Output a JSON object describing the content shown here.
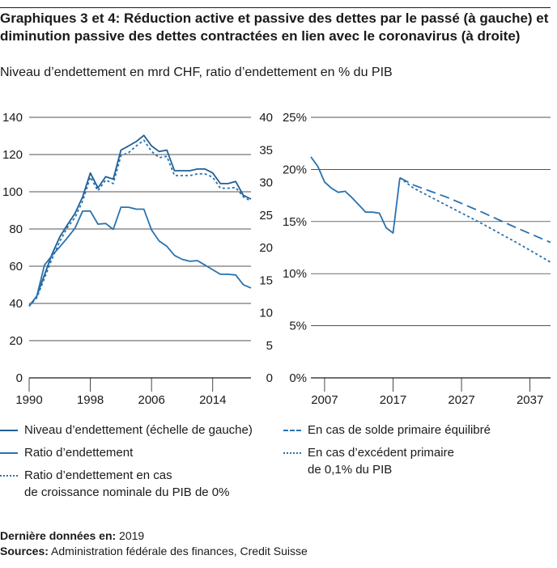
{
  "title": "Graphiques 3 et 4: Réduction active et passive des dettes par le passé (à gauche) et diminution passive des dettes contractées en lien avec le coronavirus (à droite)",
  "subtitle": "Niveau d’endettement en mrd CHF, ratio d’endettement en % du PIB",
  "legend": {
    "item1": "Niveau d’endettement (échelle de gauche)",
    "item2": "Ratio d’endettement",
    "item3_line1": "Ratio d’endettement en cas",
    "item3_line2": "de croissance nominale du PIB de 0%",
    "item4": "En cas de solde primaire équilibré",
    "item5_line1": "En cas d’excédent primaire",
    "item5_line2": "de 0,1% du PIB"
  },
  "footer": {
    "last_data_label": "Dernière données en:",
    "last_data_value": "2019",
    "sources_label": "Sources:",
    "sources_value": "Administration fédérale des finances, Credit Suisse"
  },
  "colors": {
    "line": "#2872b0",
    "line_dark": "#1e5f96",
    "grid": "#1a1a1a"
  },
  "chart_data": [
    {
      "type": "line",
      "left_axis_ticks": [
        "0",
        "20",
        "40",
        "60",
        "80",
        "100",
        "120",
        "140"
      ],
      "right_axis_ticks": [
        "0",
        "5",
        "10",
        "15",
        "20",
        "25",
        "30",
        "35",
        "40"
      ],
      "x_ticks": [
        "1990",
        "1998",
        "2006",
        "2014"
      ],
      "ylim_left": [
        0,
        140
      ],
      "ylim_right": [
        0,
        40
      ],
      "x_range": [
        1990,
        2019
      ],
      "series": [
        {
          "name": "Niveau d’endettement (échelle de gauche)",
          "axis": "left",
          "style": "solid",
          "x": [
            1990,
            1991,
            1992,
            1993,
            1994,
            1995,
            1996,
            1997,
            1998,
            1999,
            2000,
            2001,
            2002,
            2003,
            2004,
            2005,
            2006,
            2007,
            2008,
            2009,
            2010,
            2011,
            2012,
            2013,
            2014,
            2015,
            2016,
            2017,
            2018,
            2019
          ],
          "y": [
            38.5,
            43.9,
            55.3,
            66.5,
            75.7,
            82.2,
            88.4,
            97.3,
            110.1,
            102.1,
            108.1,
            106.8,
            122.4,
            124.6,
            127.0,
            130.3,
            124.6,
            121.6,
            122.4,
            111.3,
            111.3,
            111.3,
            112.2,
            112.2,
            110.1,
            104.4,
            104.4,
            105.5,
            98.1,
            96.1
          ]
        },
        {
          "name": "Ratio d’endettement",
          "axis": "right",
          "style": "solid",
          "x": [
            1990,
            1991,
            1992,
            1993,
            1994,
            1995,
            1996,
            1997,
            1998,
            1999,
            2000,
            2001,
            2002,
            2003,
            2004,
            2005,
            2006,
            2007,
            2008,
            2009,
            2010,
            2011,
            2012,
            2013,
            2014,
            2015,
            2016,
            2017,
            2018,
            2019
          ],
          "y": [
            11.1,
            12.5,
            17.3,
            18.8,
            20.1,
            21.5,
            23.0,
            25.6,
            25.6,
            23.6,
            23.7,
            22.8,
            26.2,
            26.2,
            25.9,
            25.9,
            22.7,
            21.0,
            20.2,
            18.8,
            18.2,
            17.9,
            18.0,
            17.3,
            16.6,
            15.9,
            15.9,
            15.8,
            14.3,
            13.8
          ]
        },
        {
          "name": "Ratio d’endettement en cas de croissance nominale du PIB de 0%",
          "axis": "left",
          "style": "dotted",
          "x": [
            1990,
            1991,
            1992,
            1993,
            1994,
            1995,
            1996,
            1997,
            1998,
            1999,
            2000,
            2001,
            2002,
            2003,
            2004,
            2005,
            2006,
            2007,
            2008,
            2009,
            2010,
            2011,
            2012,
            2013,
            2014,
            2015,
            2016,
            2017,
            2018,
            2019
          ],
          "y": [
            38.5,
            43.0,
            53.5,
            64.0,
            73.3,
            80.8,
            86.2,
            95.0,
            107.9,
            100.5,
            106.3,
            104.4,
            119.4,
            121.0,
            124.6,
            127.7,
            121.7,
            118.3,
            119.0,
            108.7,
            108.7,
            108.7,
            109.6,
            109.6,
            107.8,
            101.9,
            101.9,
            102.3,
            97.3,
            94.9
          ]
        }
      ]
    },
    {
      "type": "line",
      "y_axis_ticks": [
        "0%",
        "5%",
        "10%",
        "15%",
        "20%",
        "25%"
      ],
      "x_ticks": [
        "2007",
        "2017",
        "2027",
        "2037"
      ],
      "ylim": [
        0,
        25
      ],
      "x_range": [
        2005,
        2040
      ],
      "series": [
        {
          "name": "Ratio d’endettement",
          "style": "solid",
          "x": [
            2005,
            2006,
            2007,
            2008,
            2009,
            2010,
            2011,
            2012,
            2013,
            2014,
            2015,
            2016,
            2017,
            2018
          ],
          "y": [
            21.2,
            20.3,
            18.8,
            18.2,
            17.8,
            17.9,
            17.3,
            16.6,
            15.9,
            15.9,
            15.8,
            14.4,
            13.9,
            19.2
          ]
        },
        {
          "name": "En cas de solde primaire équilibré",
          "style": "dashed",
          "x": [
            2018,
            2020,
            2025,
            2030,
            2035,
            2040
          ],
          "y": [
            19.2,
            18.5,
            17.3,
            15.9,
            14.4,
            13.0
          ]
        },
        {
          "name": "En cas d’excédent primaire de 0,1% du PIB",
          "style": "dotted",
          "x": [
            2018,
            2020,
            2025,
            2030,
            2035,
            2040
          ],
          "y": [
            19.2,
            18.2,
            16.5,
            14.8,
            13.0,
            11.1
          ]
        }
      ]
    }
  ]
}
